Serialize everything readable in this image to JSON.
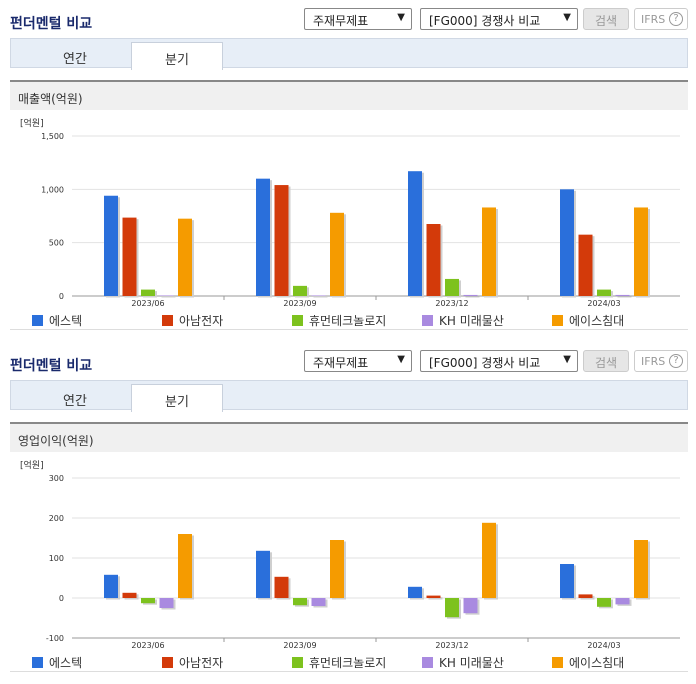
{
  "panels": [
    {
      "title": "펀더멘털 비교",
      "select1": "주재무제표",
      "select2": "[FG000] 경쟁사 비교",
      "search_label": "검색",
      "ifrs_label": "IFRS",
      "ifrs_help": "?",
      "tabs": [
        "연간",
        "분기"
      ],
      "active_tab": 1,
      "section_title": "매출액(억원)"
    },
    {
      "title": "펀더멘털 비교",
      "select1": "주재무제표",
      "select2": "[FG000] 경쟁사 비교",
      "search_label": "검색",
      "ifrs_label": "IFRS",
      "ifrs_help": "?",
      "tabs": [
        "연간",
        "분기"
      ],
      "active_tab": 1,
      "section_title": "영업이익(억원)"
    }
  ],
  "colors": [
    "#2a6fdb",
    "#d33a0a",
    "#7dc21e",
    "#a98ae0",
    "#f59b00"
  ],
  "chart_data": [
    {
      "type": "bar",
      "unit": "[억원]",
      "categories": [
        "2023/06",
        "2023/09",
        "2023/12",
        "2024/03"
      ],
      "ylim": [
        0,
        1500
      ],
      "yticks": [
        0,
        500,
        1000,
        1500
      ],
      "ytick_labels": [
        "0",
        "500",
        "1,000",
        "1,500"
      ],
      "series": [
        {
          "name": "에스텍",
          "values": [
            940,
            1100,
            1170,
            1000
          ]
        },
        {
          "name": "아남전자",
          "values": [
            735,
            1040,
            675,
            575
          ]
        },
        {
          "name": "휴먼테크놀로지",
          "values": [
            60,
            95,
            160,
            60
          ]
        },
        {
          "name": "KH 미래물산",
          "values": [
            5,
            5,
            10,
            10
          ]
        },
        {
          "name": "에이스침대",
          "values": [
            725,
            780,
            830,
            830
          ]
        }
      ],
      "legend": "bottom",
      "grid": true
    },
    {
      "type": "bar",
      "unit": "[억원]",
      "categories": [
        "2023/06",
        "2023/09",
        "2023/12",
        "2024/03"
      ],
      "ylim": [
        -100,
        300
      ],
      "yticks": [
        -100,
        0,
        100,
        200,
        300
      ],
      "ytick_labels": [
        "-100",
        "0",
        "100",
        "200",
        "300"
      ],
      "series": [
        {
          "name": "에스텍",
          "values": [
            58,
            118,
            28,
            85
          ]
        },
        {
          "name": "아남전자",
          "values": [
            13,
            53,
            6,
            9
          ]
        },
        {
          "name": "휴먼테크놀로지",
          "values": [
            -13,
            -18,
            -48,
            -22
          ]
        },
        {
          "name": "KH 미래물산",
          "values": [
            -25,
            -20,
            -38,
            -16
          ]
        },
        {
          "name": "에이스침대",
          "values": [
            160,
            145,
            188,
            145
          ]
        }
      ],
      "legend": "bottom",
      "grid": true
    }
  ]
}
